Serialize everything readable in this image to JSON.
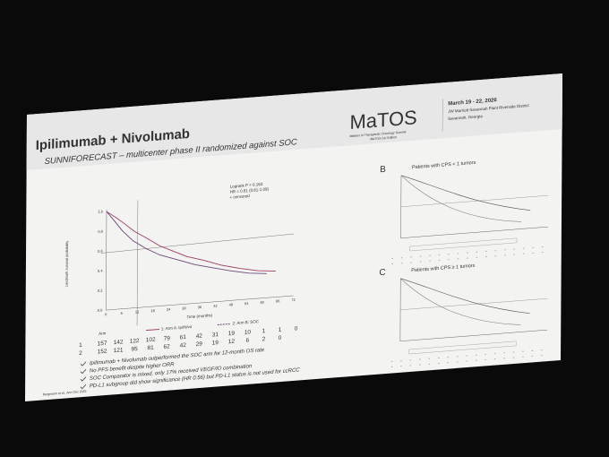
{
  "header": {
    "title": "Ipilimumab + Nivolumab",
    "subtitle": "SUNNIFORECAST –  multicenter phase II randomized against SOC",
    "logo": "MaTOS",
    "logo_line1": "Matters in Therapeutic Oncology Summit",
    "logo_line2": "MaTOS GU Edition",
    "date": "March 19 - 22, 2026",
    "venue": "JW Marriott Savannah Plant Riverside District",
    "location": "Savannah, Georgia"
  },
  "main_chart": {
    "stats": [
      "Logrank P = 0.163",
      "HR = 0.81 (0.61-1.09)",
      "+ censored"
    ],
    "y_label": "Landmark survival probability",
    "x_label": "Time (months)",
    "yticks": [
      "0.0",
      "0.2",
      "0.4",
      "0.6",
      "0.8",
      "1.0"
    ],
    "xticks": [
      "0",
      "6",
      "12",
      "18",
      "24",
      "30",
      "36",
      "42",
      "48",
      "54",
      "60",
      "66",
      "72"
    ],
    "legend_title": "Arm",
    "legend": [
      "1: Arm A: Ipi/Nivo",
      "2: Arm B: SOC"
    ],
    "at_risk": [
      {
        "arm": "1",
        "counts": [
          "157",
          "142",
          "122",
          "102",
          "79",
          "61",
          "42",
          "31",
          "19",
          "10",
          "1",
          "1",
          "0"
        ]
      },
      {
        "arm": "2",
        "counts": [
          "152",
          "121",
          "95",
          "81",
          "62",
          "42",
          "29",
          "19",
          "12",
          "6",
          "2",
          "0"
        ]
      }
    ]
  },
  "bullets": [
    "Ipilimumab + Nivolumab outperformed the SOC arm for 12-month OS rate",
    "No PFS benefit despite higher ORR",
    "SOC Comparator is mixed, only 17% received VEGF/IO combination",
    "PD-L1 subgroup did show significance (HR 0.56) but PD-L1 status is not used for ccRCC"
  ],
  "citation": "Bergmann et al., Ann Onc 2025",
  "panels": [
    {
      "label": "B",
      "title": "Patients with CPS < 1 tumors"
    },
    {
      "label": "C",
      "title": "Patients with CPS ≥ 1 tumors"
    }
  ]
}
